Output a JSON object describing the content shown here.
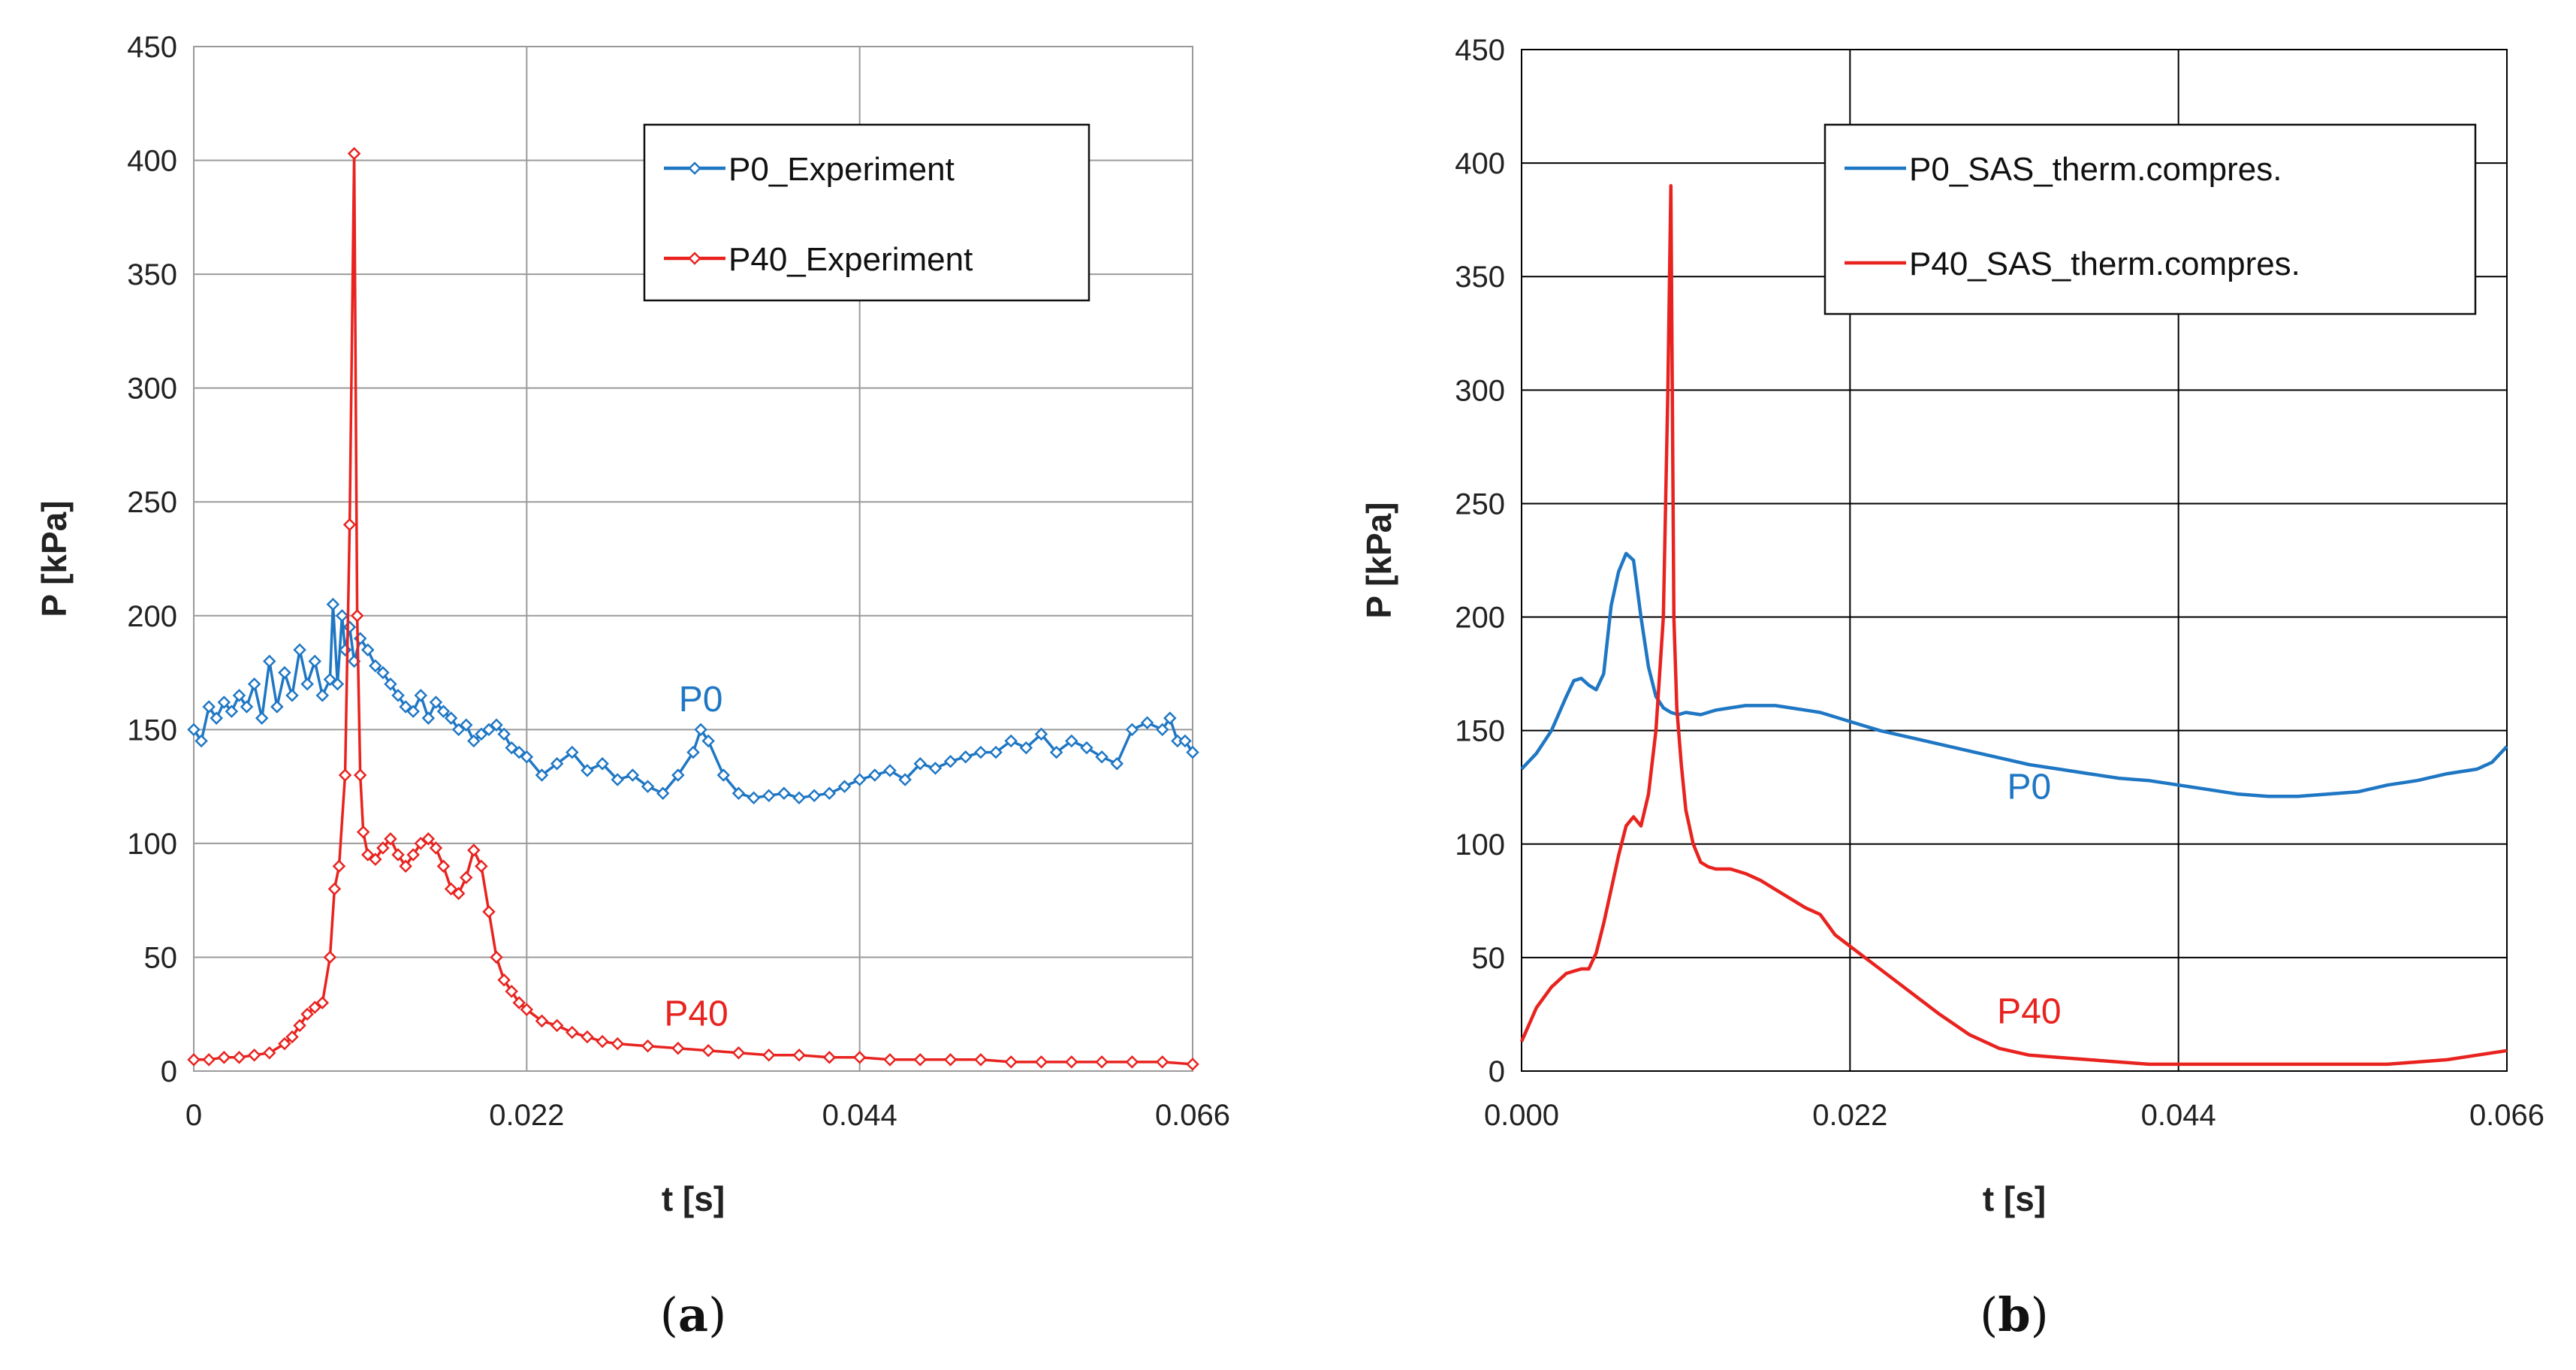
{
  "chart_data": [
    {
      "type": "line",
      "panel": "(a)",
      "panel_letter": "a",
      "xlabel": "t [s]",
      "ylabel": "P [kPa]",
      "xlim": [
        0,
        0.066
      ],
      "ylim": [
        0,
        450
      ],
      "xticks": [
        0,
        0.022,
        0.044,
        0.066
      ],
      "xtick_labels": [
        "0",
        "0.022",
        "0.044",
        "0.066"
      ],
      "yticks": [
        0,
        50,
        100,
        150,
        200,
        250,
        300,
        350,
        400,
        450
      ],
      "ytick_labels": [
        "0",
        "50",
        "100",
        "150",
        "200",
        "250",
        "300",
        "350",
        "400",
        "450"
      ],
      "grid_color": "#9a9a9a",
      "markers": true,
      "legend_position": "top-right",
      "series": [
        {
          "name": "P0_Experiment",
          "color": "#1f77c4",
          "annotation": "P0",
          "annotation_at": [
            0.0335,
            158
          ],
          "x": [
            0,
            0.0005,
            0.001,
            0.0015,
            0.002,
            0.0025,
            0.003,
            0.0035,
            0.004,
            0.0045,
            0.005,
            0.0055,
            0.006,
            0.0065,
            0.007,
            0.0075,
            0.008,
            0.0085,
            0.009,
            0.0092,
            0.0095,
            0.0098,
            0.01,
            0.0103,
            0.0106,
            0.011,
            0.0115,
            0.012,
            0.0125,
            0.013,
            0.0135,
            0.014,
            0.0145,
            0.015,
            0.0155,
            0.016,
            0.0165,
            0.017,
            0.0175,
            0.018,
            0.0185,
            0.019,
            0.0195,
            0.02,
            0.0205,
            0.021,
            0.0215,
            0.022,
            0.023,
            0.024,
            0.025,
            0.026,
            0.027,
            0.028,
            0.029,
            0.03,
            0.031,
            0.032,
            0.033,
            0.0335,
            0.034,
            0.035,
            0.036,
            0.037,
            0.038,
            0.039,
            0.04,
            0.041,
            0.042,
            0.043,
            0.044,
            0.045,
            0.046,
            0.047,
            0.048,
            0.049,
            0.05,
            0.051,
            0.052,
            0.053,
            0.054,
            0.055,
            0.056,
            0.057,
            0.058,
            0.059,
            0.06,
            0.061,
            0.062,
            0.063,
            0.064,
            0.0645,
            0.065,
            0.0655,
            0.066
          ],
          "values": [
            150,
            145,
            160,
            155,
            162,
            158,
            165,
            160,
            170,
            155,
            180,
            160,
            175,
            165,
            185,
            170,
            180,
            165,
            172,
            205,
            170,
            200,
            185,
            195,
            180,
            190,
            185,
            178,
            175,
            170,
            165,
            160,
            158,
            165,
            155,
            162,
            158,
            155,
            150,
            152,
            145,
            148,
            150,
            152,
            148,
            142,
            140,
            138,
            130,
            135,
            140,
            132,
            135,
            128,
            130,
            125,
            122,
            130,
            140,
            150,
            145,
            130,
            122,
            120,
            121,
            122,
            120,
            121,
            122,
            125,
            128,
            130,
            132,
            128,
            135,
            133,
            136,
            138,
            140,
            140,
            145,
            142,
            148,
            140,
            145,
            142,
            138,
            135,
            150,
            153,
            150,
            155,
            145,
            145,
            140
          ]
        },
        {
          "name": "P40_Experiment",
          "color": "#e8231f",
          "annotation": "P40",
          "annotation_at": [
            0.0332,
            20
          ],
          "x": [
            0,
            0.001,
            0.002,
            0.003,
            0.004,
            0.005,
            0.006,
            0.0065,
            0.007,
            0.0075,
            0.008,
            0.0085,
            0.009,
            0.0093,
            0.0096,
            0.01,
            0.0103,
            0.0106,
            0.0108,
            0.011,
            0.0112,
            0.0115,
            0.012,
            0.0125,
            0.013,
            0.0135,
            0.014,
            0.0145,
            0.015,
            0.0155,
            0.016,
            0.0165,
            0.017,
            0.0175,
            0.018,
            0.0185,
            0.019,
            0.0195,
            0.02,
            0.0205,
            0.021,
            0.0215,
            0.022,
            0.023,
            0.024,
            0.025,
            0.026,
            0.027,
            0.028,
            0.03,
            0.032,
            0.034,
            0.036,
            0.038,
            0.04,
            0.042,
            0.044,
            0.046,
            0.048,
            0.05,
            0.052,
            0.054,
            0.056,
            0.058,
            0.06,
            0.062,
            0.064,
            0.066
          ],
          "values": [
            5,
            5,
            6,
            6,
            7,
            8,
            12,
            15,
            20,
            25,
            28,
            30,
            50,
            80,
            90,
            130,
            240,
            403,
            200,
            130,
            105,
            95,
            93,
            98,
            102,
            95,
            90,
            95,
            100,
            102,
            98,
            90,
            80,
            78,
            85,
            97,
            90,
            70,
            50,
            40,
            35,
            30,
            27,
            22,
            20,
            17,
            15,
            13,
            12,
            11,
            10,
            9,
            8,
            7,
            7,
            6,
            6,
            5,
            5,
            5,
            5,
            4,
            4,
            4,
            4,
            4,
            4,
            3
          ]
        }
      ]
    },
    {
      "type": "line",
      "panel": "(b)",
      "panel_letter": "b",
      "xlabel": "t [s]",
      "ylabel": "P [kPa]",
      "xlim": [
        0,
        0.066
      ],
      "ylim": [
        0,
        450
      ],
      "xticks": [
        0,
        0.022,
        0.044,
        0.066
      ],
      "xtick_labels": [
        "0.000",
        "0.022",
        "0.044",
        "0.066"
      ],
      "yticks": [
        0,
        50,
        100,
        150,
        200,
        250,
        300,
        350,
        400,
        450
      ],
      "ytick_labels": [
        "0",
        "50",
        "100",
        "150",
        "200",
        "250",
        "300",
        "350",
        "400",
        "450"
      ],
      "grid_color": "#000000",
      "markers": false,
      "legend_position": "top-right",
      "series": [
        {
          "name": "P0_SAS_therm.compres.",
          "color": "#1f77c4",
          "annotation": "P0",
          "annotation_at": [
            0.034,
            120
          ],
          "x": [
            0,
            0.001,
            0.002,
            0.003,
            0.0035,
            0.004,
            0.0045,
            0.005,
            0.0055,
            0.006,
            0.0065,
            0.007,
            0.0075,
            0.008,
            0.0085,
            0.009,
            0.0095,
            0.01,
            0.0105,
            0.011,
            0.012,
            0.013,
            0.014,
            0.015,
            0.016,
            0.017,
            0.018,
            0.02,
            0.022,
            0.024,
            0.026,
            0.028,
            0.03,
            0.032,
            0.034,
            0.036,
            0.038,
            0.04,
            0.042,
            0.044,
            0.046,
            0.048,
            0.05,
            0.052,
            0.054,
            0.056,
            0.058,
            0.06,
            0.062,
            0.064,
            0.065,
            0.066
          ],
          "values": [
            133,
            140,
            150,
            165,
            172,
            173,
            170,
            168,
            175,
            205,
            220,
            228,
            225,
            200,
            178,
            165,
            160,
            158,
            157,
            158,
            157,
            159,
            160,
            161,
            161,
            161,
            160,
            158,
            154,
            150,
            147,
            144,
            141,
            138,
            135,
            133,
            131,
            129,
            128,
            126,
            124,
            122,
            121,
            121,
            122,
            123,
            126,
            128,
            131,
            133,
            136,
            143
          ]
        },
        {
          "name": "P40_SAS_therm.compres.",
          "color": "#e8231f",
          "annotation": "P40",
          "annotation_at": [
            0.034,
            21
          ],
          "x": [
            0,
            0.001,
            0.002,
            0.003,
            0.004,
            0.0045,
            0.005,
            0.0055,
            0.006,
            0.0065,
            0.007,
            0.0075,
            0.008,
            0.0085,
            0.009,
            0.0095,
            0.0098,
            0.01,
            0.0102,
            0.0104,
            0.0107,
            0.011,
            0.0115,
            0.012,
            0.0125,
            0.013,
            0.014,
            0.015,
            0.016,
            0.017,
            0.018,
            0.019,
            0.02,
            0.021,
            0.022,
            0.024,
            0.026,
            0.028,
            0.03,
            0.032,
            0.034,
            0.036,
            0.038,
            0.04,
            0.042,
            0.044,
            0.046,
            0.048,
            0.05,
            0.052,
            0.054,
            0.056,
            0.058,
            0.06,
            0.062,
            0.064,
            0.066
          ],
          "values": [
            13,
            28,
            37,
            43,
            45,
            45,
            52,
            65,
            80,
            95,
            108,
            112,
            108,
            122,
            150,
            200,
            300,
            390,
            200,
            160,
            135,
            115,
            100,
            92,
            90,
            89,
            89,
            87,
            84,
            80,
            76,
            72,
            69,
            60,
            55,
            45,
            35,
            25,
            16,
            10,
            7,
            6,
            5,
            4,
            3,
            3,
            3,
            3,
            3,
            3,
            3,
            3,
            3,
            4,
            5,
            7,
            9
          ]
        }
      ]
    }
  ]
}
